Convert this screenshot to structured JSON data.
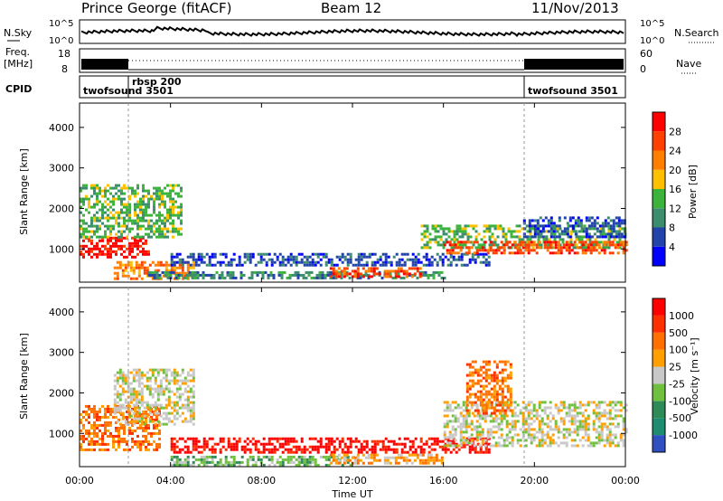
{
  "header": {
    "station": "Prince George (fitACF)",
    "beam": "Beam 12",
    "date": "11/Nov/2013"
  },
  "noise_panel": {
    "left_label": "N.Sky",
    "right_label": "N.Search",
    "left_ticks": [
      "10^5",
      "10^0"
    ],
    "right_ticks": [
      "10^5",
      "10^0"
    ]
  },
  "freq_panel": {
    "left_label_1": "Freq.",
    "left_label_2": "[MHz]",
    "left_ticks": [
      "18",
      "8"
    ],
    "right_label": "Nave",
    "right_ticks": [
      "60",
      "0"
    ]
  },
  "cpid_panel": {
    "label": "CPID",
    "modes": [
      {
        "name": "twofsound 3501",
        "start_hour": 0
      },
      {
        "name": "rbsp 200",
        "start_hour": 2
      },
      {
        "name": "twofsound 3501",
        "start_hour": 19.5
      }
    ]
  },
  "x_axis": {
    "label": "Time UT",
    "ticks": [
      "00:00",
      "04:00",
      "08:00",
      "12:00",
      "16:00",
      "20:00",
      "00:00"
    ],
    "range_hours": [
      0,
      24
    ]
  },
  "y_axis": {
    "label": "Slant Range [km]",
    "ticks": [
      "1000",
      "2000",
      "3000",
      "4000"
    ],
    "range_km": [
      180,
      4600
    ]
  },
  "colors": {
    "power_scale": [
      "#0000ff",
      "#2244aa",
      "#3c8c6e",
      "#3cb43c",
      "#ffc000",
      "#ff8000",
      "#ff4000",
      "#ff0000"
    ],
    "velocity_scale": [
      "#3050c0",
      "#1e8c6e",
      "#2e8b57",
      "#70c040",
      "#c8c8c8",
      "#ffa000",
      "#ff7000",
      "#ff3000",
      "#ff0000"
    ],
    "ground_scatter": "#c8c8c8"
  },
  "chart_data": [
    {
      "type": "heatmap",
      "name": "power",
      "colorbar_label": "Power [dB]",
      "colorbar_ticks": [
        "4",
        "8",
        "12",
        "16",
        "20",
        "24",
        "28"
      ],
      "x_unit": "hours UT",
      "y_unit": "km",
      "features": [
        {
          "t0": 0,
          "t1": 3,
          "r0": 800,
          "r1": 1300,
          "level": 7
        },
        {
          "t0": 1.5,
          "t1": 5,
          "r0": 250,
          "r1": 700,
          "level": 5
        },
        {
          "t0": 3,
          "t1": 16,
          "r0": 250,
          "r1": 450,
          "level": 2
        },
        {
          "t0": 4,
          "t1": 18,
          "r0": 600,
          "r1": 900,
          "level": 1
        },
        {
          "t0": 11,
          "t1": 15,
          "r0": 300,
          "r1": 550,
          "level": 6
        },
        {
          "t0": 15,
          "t1": 24,
          "r0": 1000,
          "r1": 1600,
          "level": 3
        },
        {
          "t0": 16,
          "t1": 24,
          "r0": 900,
          "r1": 1200,
          "level": 6
        },
        {
          "t0": 19.5,
          "t1": 24,
          "r0": 1300,
          "r1": 1800,
          "level": 1
        },
        {
          "t0": 0,
          "t1": 4.5,
          "r0": 1300,
          "r1": 2600,
          "level": 3
        }
      ]
    },
    {
      "type": "heatmap",
      "name": "velocity",
      "colorbar_label": "Velocity [m s⁻¹]",
      "colorbar_ticks": [
        "1000",
        "500",
        "100",
        "25",
        "-25",
        "-100",
        "-500",
        "-1000"
      ],
      "x_unit": "hours UT",
      "y_unit": "km",
      "features": [
        {
          "t0": 0,
          "t1": 3.5,
          "r0": 600,
          "r1": 1700,
          "level": 6
        },
        {
          "t0": 1.5,
          "t1": 5,
          "r0": 1200,
          "r1": 2600,
          "level": 4
        },
        {
          "t0": 4,
          "t1": 12,
          "r0": 200,
          "r1": 450,
          "level": 3
        },
        {
          "t0": 4,
          "t1": 18,
          "r0": 500,
          "r1": 900,
          "level": 8
        },
        {
          "t0": 11,
          "t1": 16,
          "r0": 250,
          "r1": 500,
          "level": 5
        },
        {
          "t0": 16,
          "t1": 24,
          "r0": 700,
          "r1": 1800,
          "level": 4
        },
        {
          "t0": 17,
          "t1": 19,
          "r0": 1500,
          "r1": 2800,
          "level": 6
        }
      ]
    }
  ]
}
